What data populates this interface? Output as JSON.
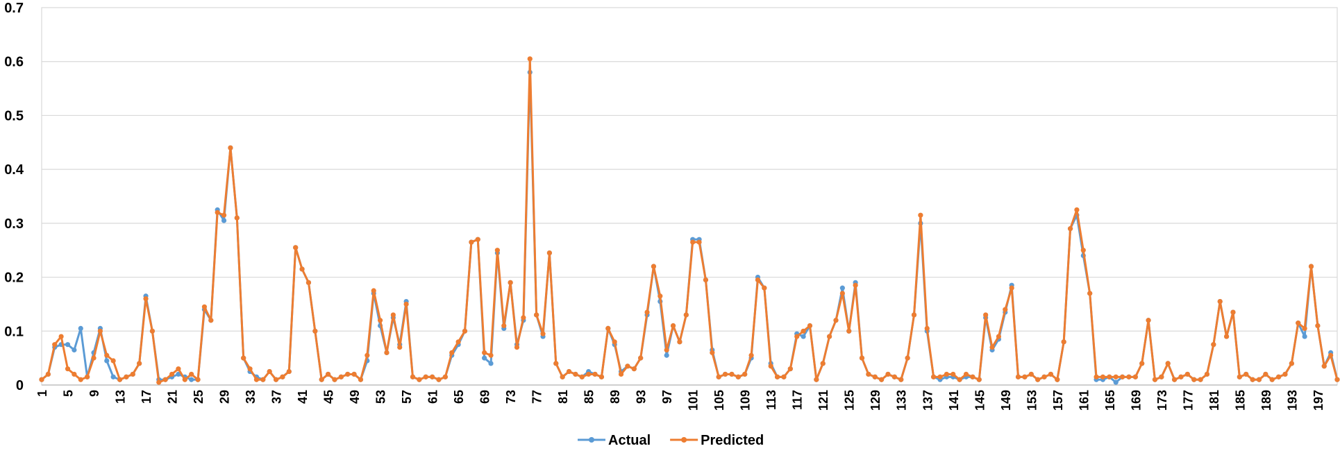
{
  "chart_data": {
    "type": "line",
    "title": "",
    "xlabel": "",
    "ylabel": "",
    "ylim": [
      0,
      0.7
    ],
    "y_ticks": [
      "0",
      "0.1",
      "0.2",
      "0.3",
      "0.4",
      "0.5",
      "0.6",
      "0.7"
    ],
    "x_tick_labels": [
      "1",
      "5",
      "9",
      "13",
      "17",
      "21",
      "25",
      "29",
      "33",
      "37",
      "41",
      "45",
      "49",
      "53",
      "57",
      "61",
      "65",
      "69",
      "73",
      "77",
      "81",
      "85",
      "89",
      "93",
      "97",
      "101",
      "105",
      "109",
      "113",
      "117",
      "121",
      "125",
      "129",
      "133",
      "137",
      "141",
      "145",
      "149",
      "153",
      "157",
      "161",
      "165",
      "169",
      "173",
      "177",
      "181",
      "185",
      "189",
      "193",
      "197"
    ],
    "x_tick_values": [
      1,
      5,
      9,
      13,
      17,
      21,
      25,
      29,
      33,
      37,
      41,
      45,
      49,
      53,
      57,
      61,
      65,
      69,
      73,
      77,
      81,
      85,
      89,
      93,
      97,
      101,
      105,
      109,
      113,
      117,
      121,
      125,
      129,
      133,
      137,
      141,
      145,
      149,
      153,
      157,
      161,
      165,
      169,
      173,
      177,
      181,
      185,
      189,
      193,
      197
    ],
    "x_range": [
      1,
      200
    ],
    "grid": "horizontal",
    "legend_position": "bottom-center",
    "series": [
      {
        "name": "Actual",
        "color": "#5b9bd5",
        "values": [
          0.01,
          0.02,
          0.07,
          0.075,
          0.075,
          0.065,
          0.105,
          0.015,
          0.06,
          0.105,
          0.045,
          0.015,
          0.01,
          0.015,
          0.02,
          0.04,
          0.165,
          0.1,
          0.01,
          0.01,
          0.015,
          0.02,
          0.015,
          0.01,
          0.01,
          0.14,
          0.12,
          0.325,
          0.305,
          0.44,
          0.31,
          0.05,
          0.025,
          0.015,
          0.01,
          0.025,
          0.01,
          0.015,
          0.025,
          0.255,
          0.215,
          0.19,
          0.1,
          0.01,
          0.02,
          0.01,
          0.015,
          0.02,
          0.02,
          0.01,
          0.045,
          0.17,
          0.11,
          0.06,
          0.125,
          0.075,
          0.155,
          0.015,
          0.01,
          0.015,
          0.015,
          0.01,
          0.015,
          0.055,
          0.075,
          0.1,
          0.265,
          0.27,
          0.05,
          0.04,
          0.245,
          0.105,
          0.19,
          0.075,
          0.12,
          0.58,
          0.13,
          0.09,
          0.245,
          0.04,
          0.015,
          0.025,
          0.02,
          0.015,
          0.025,
          0.02,
          0.015,
          0.105,
          0.075,
          0.025,
          0.035,
          0.03,
          0.05,
          0.13,
          0.22,
          0.155,
          0.055,
          0.11,
          0.08,
          0.13,
          0.27,
          0.27,
          0.195,
          0.065,
          0.015,
          0.02,
          0.02,
          0.015,
          0.02,
          0.05,
          0.2,
          0.18,
          0.04,
          0.015,
          0.015,
          0.03,
          0.095,
          0.09,
          0.11,
          0.01,
          0.04,
          0.09,
          0.12,
          0.18,
          0.1,
          0.19,
          0.05,
          0.02,
          0.015,
          0.01,
          0.02,
          0.015,
          0.01,
          0.05,
          0.13,
          0.3,
          0.1,
          0.015,
          0.01,
          0.015,
          0.015,
          0.01,
          0.015,
          0.015,
          0.01,
          0.125,
          0.065,
          0.085,
          0.135,
          0.185,
          0.015,
          0.015,
          0.02,
          0.01,
          0.015,
          0.02,
          0.01,
          0.08,
          0.29,
          0.315,
          0.24,
          0.17,
          0.01,
          0.01,
          0.015,
          0.005,
          0.015,
          0.015,
          0.015,
          0.04,
          0.12,
          0.01,
          0.015,
          0.04,
          0.01,
          0.015,
          0.02,
          0.01,
          0.01,
          0.02,
          0.075,
          0.155,
          0.09,
          0.135,
          0.015,
          0.02,
          0.01,
          0.01,
          0.02,
          0.01,
          0.015,
          0.02,
          0.04,
          0.115,
          0.09,
          0.22,
          0.11,
          0.035,
          0.06,
          0.01
        ]
      },
      {
        "name": "Predicted",
        "color": "#ed7d31",
        "values": [
          0.01,
          0.02,
          0.075,
          0.09,
          0.03,
          0.02,
          0.01,
          0.015,
          0.05,
          0.1,
          0.055,
          0.045,
          0.01,
          0.015,
          0.02,
          0.04,
          0.16,
          0.1,
          0.005,
          0.01,
          0.02,
          0.03,
          0.01,
          0.02,
          0.01,
          0.145,
          0.12,
          0.32,
          0.315,
          0.44,
          0.31,
          0.05,
          0.03,
          0.01,
          0.01,
          0.025,
          0.01,
          0.015,
          0.025,
          0.255,
          0.215,
          0.19,
          0.1,
          0.01,
          0.02,
          0.01,
          0.015,
          0.02,
          0.02,
          0.01,
          0.055,
          0.175,
          0.12,
          0.06,
          0.13,
          0.07,
          0.15,
          0.015,
          0.01,
          0.015,
          0.015,
          0.01,
          0.015,
          0.06,
          0.08,
          0.1,
          0.265,
          0.27,
          0.06,
          0.055,
          0.25,
          0.11,
          0.19,
          0.07,
          0.125,
          0.605,
          0.13,
          0.095,
          0.245,
          0.04,
          0.015,
          0.025,
          0.02,
          0.015,
          0.02,
          0.02,
          0.015,
          0.105,
          0.08,
          0.02,
          0.035,
          0.03,
          0.05,
          0.135,
          0.22,
          0.165,
          0.065,
          0.11,
          0.08,
          0.13,
          0.265,
          0.265,
          0.195,
          0.06,
          0.015,
          0.02,
          0.02,
          0.015,
          0.02,
          0.055,
          0.195,
          0.18,
          0.035,
          0.015,
          0.015,
          0.03,
          0.09,
          0.1,
          0.11,
          0.01,
          0.04,
          0.09,
          0.12,
          0.17,
          0.1,
          0.185,
          0.05,
          0.02,
          0.015,
          0.01,
          0.02,
          0.015,
          0.01,
          0.05,
          0.13,
          0.315,
          0.105,
          0.015,
          0.015,
          0.02,
          0.02,
          0.01,
          0.02,
          0.015,
          0.01,
          0.13,
          0.07,
          0.09,
          0.14,
          0.18,
          0.015,
          0.015,
          0.02,
          0.01,
          0.015,
          0.02,
          0.01,
          0.08,
          0.29,
          0.325,
          0.25,
          0.17,
          0.015,
          0.015,
          0.015,
          0.015,
          0.015,
          0.015,
          0.015,
          0.04,
          0.12,
          0.01,
          0.015,
          0.04,
          0.01,
          0.015,
          0.02,
          0.01,
          0.01,
          0.02,
          0.075,
          0.155,
          0.09,
          0.135,
          0.015,
          0.02,
          0.01,
          0.01,
          0.02,
          0.01,
          0.015,
          0.02,
          0.04,
          0.115,
          0.105,
          0.22,
          0.11,
          0.035,
          0.055,
          0.01
        ]
      }
    ]
  }
}
